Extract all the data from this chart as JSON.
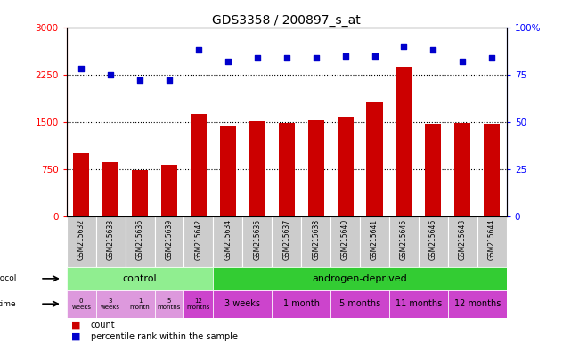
{
  "title": "GDS3358 / 200897_s_at",
  "samples": [
    "GSM215632",
    "GSM215633",
    "GSM215636",
    "GSM215639",
    "GSM215642",
    "GSM215634",
    "GSM215635",
    "GSM215637",
    "GSM215638",
    "GSM215640",
    "GSM215641",
    "GSM215645",
    "GSM215646",
    "GSM215643",
    "GSM215644"
  ],
  "counts": [
    1000,
    870,
    740,
    820,
    1620,
    1450,
    1520,
    1480,
    1530,
    1590,
    1830,
    2380,
    1470,
    1490,
    1470
  ],
  "percentile": [
    78,
    75,
    72,
    72,
    88,
    82,
    84,
    84,
    84,
    85,
    85,
    90,
    88,
    82,
    84
  ],
  "bar_color": "#cc0000",
  "dot_color": "#0000cc",
  "ylim_left": [
    0,
    3000
  ],
  "yticks_left": [
    0,
    750,
    1500,
    2250,
    3000
  ],
  "ylim_right": [
    0,
    100
  ],
  "yticks_right": [
    0,
    25,
    50,
    75,
    100
  ],
  "grid_vals": [
    750,
    1500,
    2250
  ],
  "control_color": "#90ee90",
  "androgen_color": "#33cc33",
  "time_color_light": "#dd99dd",
  "time_color_dark": "#cc44cc",
  "time_labels_control": [
    "0\nweeks",
    "3\nweeks",
    "1\nmonth",
    "5\nmonths",
    "12\nmonths"
  ],
  "time_labels_androgen": [
    "3 weeks",
    "1 month",
    "5 months",
    "11 months",
    "12 months"
  ]
}
